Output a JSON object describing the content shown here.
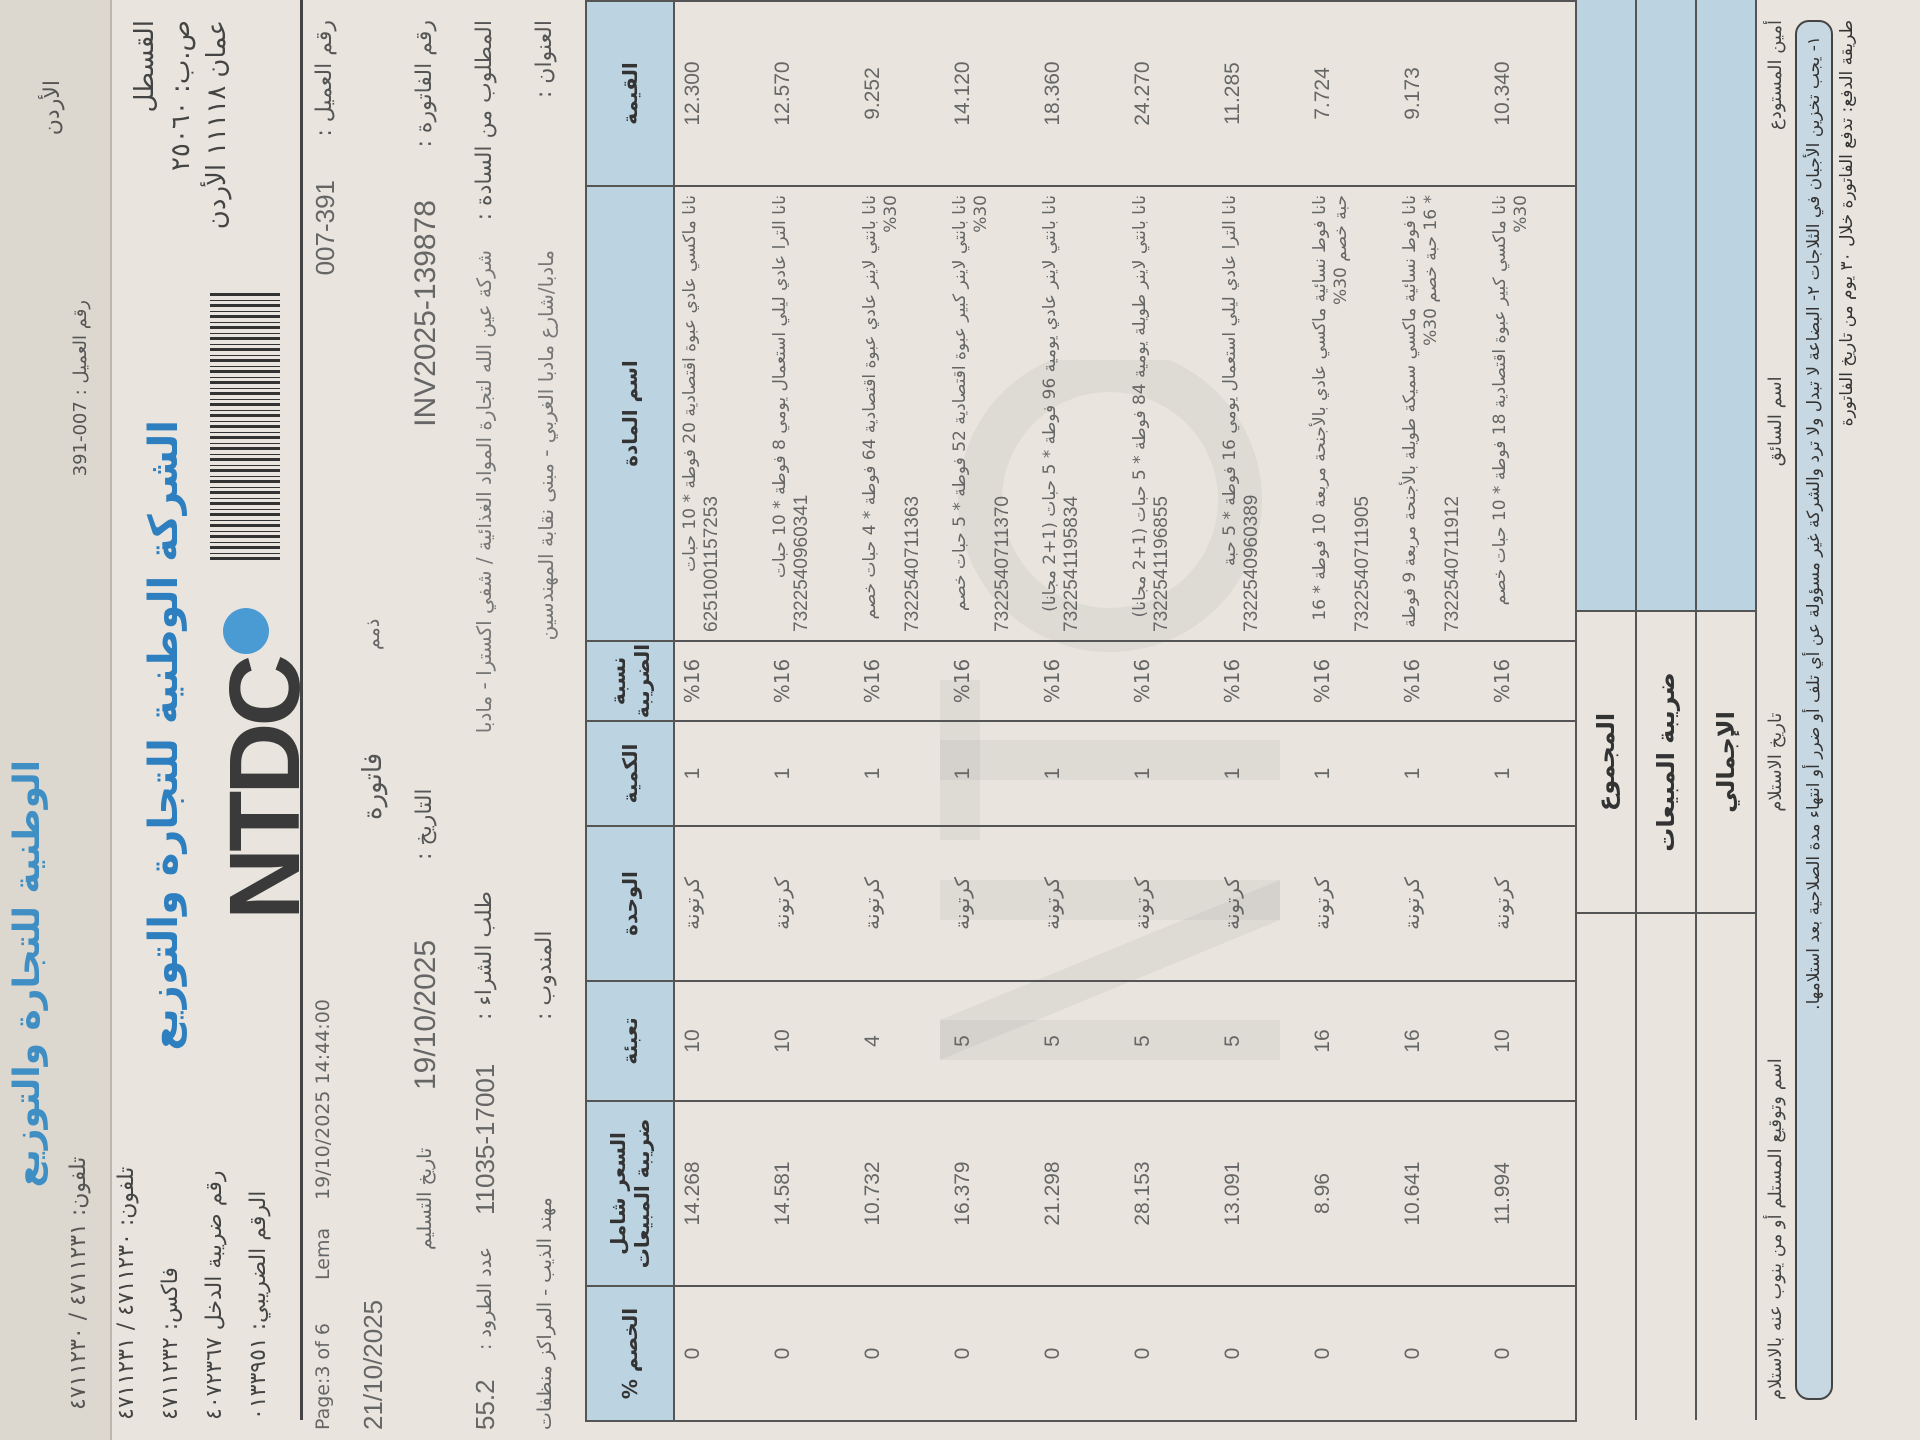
{
  "under_page": {
    "company": "الوطنية للتجارة والتوزيع",
    "phone": "تلفون: ٤٧١١٢٣١ / ٤٧١١٢٣٠",
    "country": "الأردن",
    "customer_no": "رقم العميل : 007-391"
  },
  "header": {
    "company_name": "الشركة الوطنية للتجارة والتوزيع",
    "logo_text": "NTDC",
    "address": [
      "القسطل",
      "ص.ب: ٢٥٠٦٠",
      "عمان ١١١١٨ الأردن"
    ],
    "contact": [
      "تلفون: ٤٧١١٢٣٠ / ٤٧١١٢٣١",
      "فاكس: ٤٧١١٢٣٢",
      "رقم ضريبة الدخل ٤٠٧٢٣٦٧",
      "الرقم الضريبي: ٠١٣٣٩٥١"
    ],
    "page": "Page:3 of 6",
    "user": "Lema",
    "printed_at": "19/10/2025 14:44:00",
    "print_date": "21/10/2025",
    "doc_type": "فاتورة",
    "payment_type": "ذمم"
  },
  "fields": {
    "customer_no_label": "رقم العميل :",
    "customer_no": "007-391",
    "invoice_no_label": "رقم الفاتورة :",
    "invoice_no": "INV2025-139878",
    "bill_to_label": "المطلوب من السادة :",
    "bill_to": "شركة عين الله لتجارة المواد الغذائية / شفي اكسترا - مادبا",
    "address_label": "العنوان :",
    "address": "مادبا/شارع مادبا الغربي - مبنى نقابة المهندسين",
    "date_label": "التاريخ :",
    "date": "19/10/2025",
    "delivery_date_label": "تاريخ التسليم",
    "delivery_date": "19/10/2025",
    "po_label": "طلب الشراء :",
    "po": "11035-17001",
    "parcels_label": "عدد الطرود :",
    "parcels": "55.2",
    "rep_label": "المندوب :",
    "rep": "مهند الذيب - المراكز منظفات"
  },
  "table": {
    "columns": [
      "القيمة",
      "اسم المادة",
      "نسبة الضريبة",
      "الكمية",
      "الوحدة",
      "تعبئة",
      "السعر شامل ضريبة المبيعات",
      "الخصم %"
    ],
    "rows": [
      {
        "value": "12.300",
        "name": "نانا ماكسي عادي عبوة اقتصادية 20 فوطة * 10 حبات",
        "code": "6251001157253",
        "tax": "%16",
        "qty": "1",
        "unit": "كرتونة",
        "pack": "10",
        "price": "14.268",
        "discount": "0"
      },
      {
        "value": "12.570",
        "name": "نانا الترا عادي ليلي استعمال يومي 8 فوطة * 10 حبات",
        "code": "7322540960341",
        "tax": "%16",
        "qty": "1",
        "unit": "كرتونة",
        "pack": "10",
        "price": "14.581",
        "discount": "0"
      },
      {
        "value": "9.252",
        "name": "نانا بانتي لاينر عادي عبوة اقتصادية 64 فوطة * 4 حبات خصم 30%",
        "code": "7322540711363",
        "tax": "%16",
        "qty": "1",
        "unit": "كرتونة",
        "pack": "4",
        "price": "10.732",
        "discount": "0"
      },
      {
        "value": "14.120",
        "name": "نانا بانتي لاينر كبير عبوة اقتصادية 52 فوطة * 5 حبات خصم 30%",
        "code": "7322540711370",
        "tax": "%16",
        "qty": "1",
        "unit": "كرتونة",
        "pack": "5",
        "price": "16.379",
        "discount": "0"
      },
      {
        "value": "18.360",
        "name": "نانا بانتي لاينر عادي يومية 96 فوطة * 5 حبات (1+2 مجانا)",
        "code": "7322541195834",
        "tax": "%16",
        "qty": "1",
        "unit": "كرتونة",
        "pack": "5",
        "price": "21.298",
        "discount": "0"
      },
      {
        "value": "24.270",
        "name": "نانا بانتي لاينر طويلة يومية 84 فوطة * 5 حبات (1+2 مجانا)",
        "code": "7322541196855",
        "tax": "%16",
        "qty": "1",
        "unit": "كرتونة",
        "pack": "5",
        "price": "28.153",
        "discount": "0"
      },
      {
        "value": "11.285",
        "name": "نانا الترا عادي ليلي استعمال يومي 16 فوطة * 5 حبة",
        "code": "7322540960389",
        "tax": "%16",
        "qty": "1",
        "unit": "كرتونة",
        "pack": "5",
        "price": "13.091",
        "discount": "0"
      },
      {
        "value": "7.724",
        "name": "نانا فوط نسائية ماكسي عادي بالأجنحة مربعة 10 فوطة * 16 حبة خصم 30%",
        "code": "7322540711905",
        "tax": "%16",
        "qty": "1",
        "unit": "كرتونة",
        "pack": "16",
        "price": "8.96",
        "discount": "0"
      },
      {
        "value": "9.173",
        "name": "نانا فوط نسائية ماكسي سميكة طويلة بالأجنحة مربعة 9 فوطة * 16 حبة خصم 30%",
        "code": "7322540711912",
        "tax": "%16",
        "qty": "1",
        "unit": "كرتونة",
        "pack": "16",
        "price": "10.641",
        "discount": "0"
      },
      {
        "value": "10.340",
        "name": "نانا ماكسي كبير عبوة اقتصادية 18 فوطة * 10 حبات خصم 30%",
        "code": "",
        "tax": "%16",
        "qty": "1",
        "unit": "كرتونة",
        "pack": "10",
        "price": "11.994",
        "discount": "0"
      }
    ]
  },
  "totals": {
    "subtotal_label": "المجموع",
    "sales_tax_label": "ضريبة المبيعات",
    "grand_total_label": "الإجمالي"
  },
  "signatures": {
    "warehouse": "أمين المستودع",
    "driver": "اسم السائق",
    "received_date": "تاريخ الاستلام",
    "receiver": "اسم وتوقيع المستلم أو من ينوب عنه بالاستلام"
  },
  "notes": "١- يجب تخزين الأجبان في الثلاجات   ٢- البضاعة لا تبدل ولا ترد والشركة غير مسؤولة عن أي تلف أو ضرر أو انتهاء مدة الصلاحية بعد استلامها.",
  "payment_terms": "طريقة الدفع: تدفع الفاتورة خلال ٣٠ يوم من تاريخ الفاتورة",
  "colors": {
    "header_fill": "#bcd3e2",
    "brand_blue": "#2e7fbf",
    "paper": "#e9e5de"
  }
}
